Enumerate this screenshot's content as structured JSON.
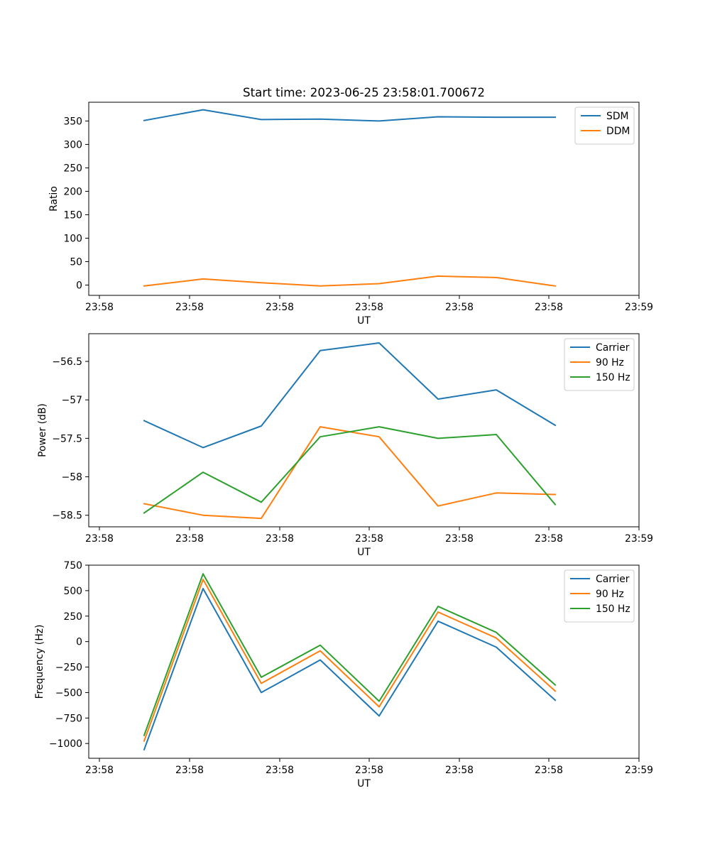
{
  "chart_data": [
    {
      "type": "line",
      "title": "Start time: 2023-06-25 23:58:01.700672",
      "xlabel": "UT",
      "ylabel": "Ratio",
      "xticks": [
        "23:58",
        "23:58",
        "23:58",
        "23:58",
        "23:58",
        "23:58",
        "23:59"
      ],
      "ylim": [
        -22,
        390
      ],
      "yticks": [
        0,
        50,
        100,
        150,
        200,
        250,
        300,
        350
      ],
      "grid": false,
      "legend_position": "top-right",
      "x": [
        1,
        2,
        3,
        4,
        5,
        6,
        7,
        8
      ],
      "series": [
        {
          "name": "SDM",
          "color": "#1f77b4",
          "values": [
            351,
            374,
            353,
            354,
            350,
            359,
            358,
            358
          ]
        },
        {
          "name": "DDM",
          "color": "#ff7f0e",
          "values": [
            -2,
            13,
            5,
            -2,
            3,
            19,
            16,
            -2
          ]
        }
      ]
    },
    {
      "type": "line",
      "title": "",
      "xlabel": "UT",
      "ylabel": "Power (dB)",
      "xticks": [
        "23:58",
        "23:58",
        "23:58",
        "23:58",
        "23:58",
        "23:58",
        "23:59"
      ],
      "ylim": [
        -58.65,
        -56.14
      ],
      "yticks": [
        -58.5,
        -58.0,
        -57.5,
        -57.0,
        -56.5
      ],
      "grid": false,
      "legend_position": "top-right",
      "x": [
        1,
        2,
        3,
        4,
        5,
        6,
        7,
        8
      ],
      "series": [
        {
          "name": "Carrier",
          "color": "#1f77b4",
          "values": [
            -57.27,
            -57.62,
            -57.34,
            -56.36,
            -56.26,
            -56.99,
            -56.87,
            -57.33
          ]
        },
        {
          "name": "90 Hz",
          "color": "#ff7f0e",
          "values": [
            -58.35,
            -58.5,
            -58.54,
            -57.35,
            -57.48,
            -58.38,
            -58.21,
            -58.23
          ]
        },
        {
          "name": "150 Hz",
          "color": "#2ca02c",
          "values": [
            -58.47,
            -57.94,
            -58.33,
            -57.48,
            -57.35,
            -57.5,
            -57.45,
            -58.36
          ]
        }
      ]
    },
    {
      "type": "line",
      "title": "",
      "xlabel": "UT",
      "ylabel": "Frequency (Hz)",
      "xticks": [
        "23:58",
        "23:58",
        "23:58",
        "23:58",
        "23:58",
        "23:58",
        "23:59"
      ],
      "ylim": [
        -1145,
        750
      ],
      "yticks": [
        -1000,
        -750,
        -500,
        -250,
        0,
        250,
        500,
        750
      ],
      "ytick_labels": [
        "−1000",
        "−750",
        "−500",
        "−250",
        "0",
        "250",
        "500",
        "750"
      ],
      "grid": false,
      "legend_position": "top-right",
      "x": [
        1,
        2,
        3,
        4,
        5,
        6,
        7,
        8
      ],
      "series": [
        {
          "name": "Carrier",
          "color": "#1f77b4",
          "values": [
            -1060,
            520,
            -500,
            -180,
            -730,
            200,
            -55,
            -575
          ]
        },
        {
          "name": "90 Hz",
          "color": "#ff7f0e",
          "values": [
            -975,
            610,
            -410,
            -90,
            -640,
            290,
            35,
            -485
          ]
        },
        {
          "name": "150 Hz",
          "color": "#2ca02c",
          "values": [
            -920,
            665,
            -350,
            -35,
            -585,
            345,
            90,
            -425
          ]
        }
      ]
    }
  ]
}
